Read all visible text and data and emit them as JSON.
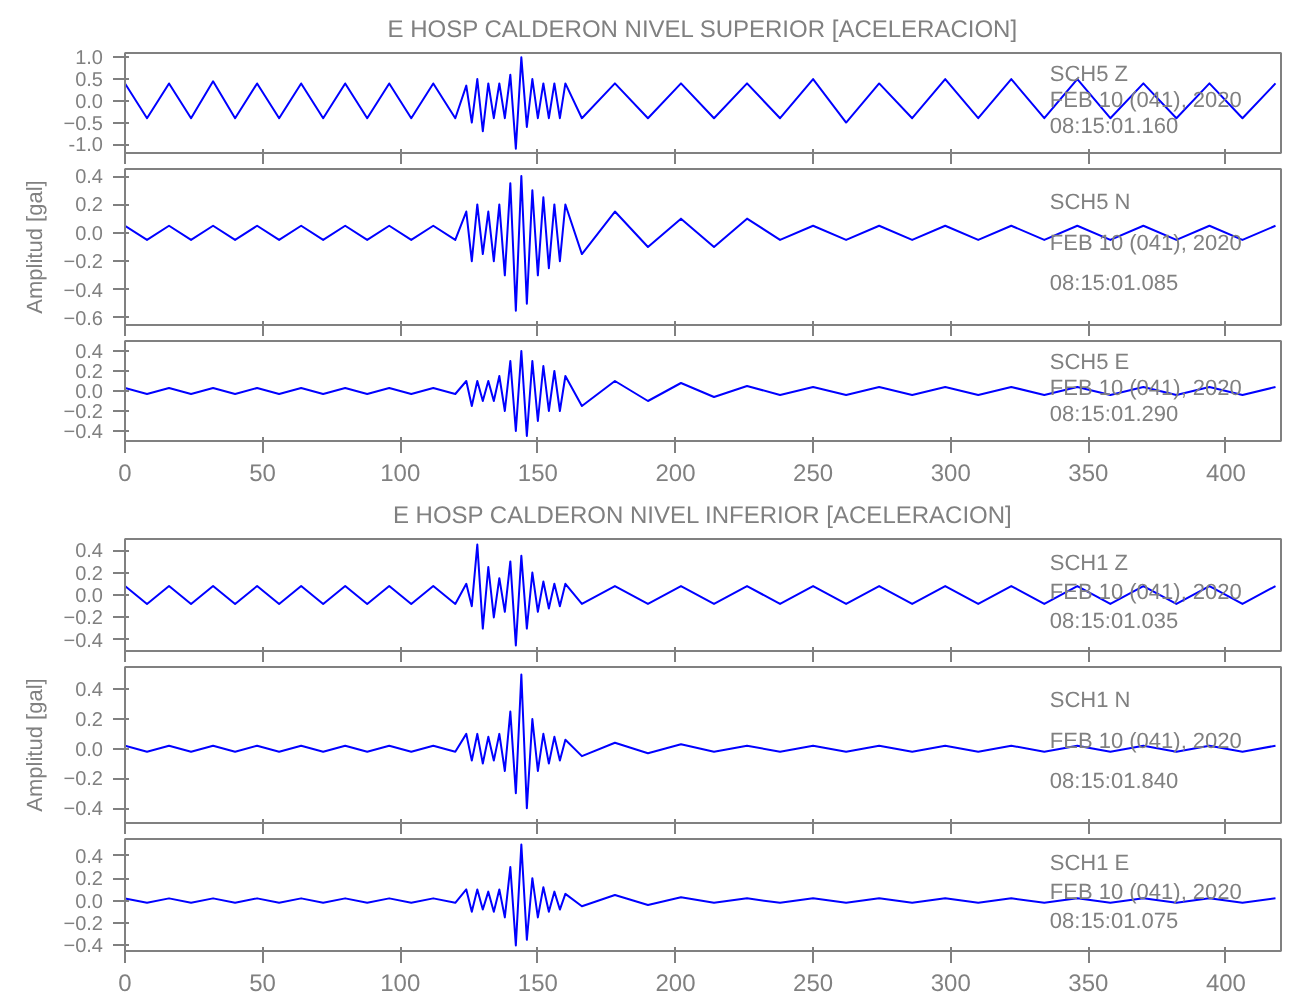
{
  "chart_data": [
    {
      "type": "line",
      "title": "E HOSP CALDERON NIVEL SUPERIOR [ACELERACION]",
      "tick_labels": "y",
      "xlim": [
        0,
        420
      ],
      "xticks": [
        0,
        50,
        100,
        150,
        200,
        250,
        300,
        350,
        400
      ],
      "ylim": [
        -1.2,
        1.1
      ],
      "yticks": [
        {
          "value": 1.0,
          "label": "1.0"
        },
        0.5,
        {
          "value": 0.0,
          "label": "0.0"
        },
        -0.5,
        {
          "value": -1.0,
          "label": "-1.0"
        }
      ],
      "annotations": [
        "SCH5   Z",
        "FEB 10 (041), 2020",
        "08:15:01.160"
      ],
      "x": [
        0,
        8,
        16,
        24,
        32,
        40,
        48,
        56,
        64,
        72,
        80,
        88,
        96,
        104,
        112,
        120,
        124,
        126,
        128,
        130,
        132,
        134,
        136,
        138,
        140,
        142,
        144,
        146,
        148,
        150,
        152,
        154,
        156,
        158,
        160,
        166,
        178,
        190,
        202,
        214,
        226,
        238,
        250,
        262,
        274,
        286,
        298,
        310,
        322,
        334,
        346,
        358,
        370,
        382,
        394,
        406,
        418
      ],
      "series": [
        {
          "color": "#0000ff",
          "values": [
            0.4,
            -0.4,
            0.4,
            -0.4,
            0.45,
            -0.4,
            0.4,
            -0.4,
            0.4,
            -0.4,
            0.4,
            -0.4,
            0.4,
            -0.4,
            0.4,
            -0.4,
            0.35,
            -0.5,
            0.5,
            -0.7,
            0.4,
            -0.4,
            0.4,
            -0.4,
            0.6,
            -1.1,
            1.0,
            -0.6,
            0.5,
            -0.4,
            0.4,
            -0.4,
            0.4,
            -0.4,
            0.4,
            -0.4,
            0.4,
            -0.4,
            0.4,
            -0.4,
            0.4,
            -0.4,
            0.5,
            -0.5,
            0.4,
            -0.4,
            0.5,
            -0.4,
            0.5,
            -0.4,
            0.5,
            -0.4,
            0.4,
            -0.4,
            0.4,
            -0.4,
            0.4
          ]
        }
      ]
    },
    {
      "type": "line",
      "ylabel": "Amplitud [gal]",
      "tick_labels": "y",
      "xlim": [
        0,
        420
      ],
      "xticks": [
        0,
        50,
        100,
        150,
        200,
        250,
        300,
        350,
        400
      ],
      "ylim": [
        -0.65,
        0.45
      ],
      "yticks": [
        0.4,
        0.2,
        {
          "value": 0.0,
          "label": "0.0"
        },
        -0.2,
        -0.4,
        -0.6
      ],
      "annotations": [
        "SCH5   N",
        "FEB 10 (041), 2020",
        "08:15:01.085"
      ],
      "x": [
        0,
        8,
        16,
        24,
        32,
        40,
        48,
        56,
        64,
        72,
        80,
        88,
        96,
        104,
        112,
        120,
        124,
        126,
        128,
        130,
        132,
        134,
        136,
        138,
        140,
        142,
        144,
        146,
        148,
        150,
        152,
        154,
        156,
        158,
        160,
        166,
        178,
        190,
        202,
        214,
        226,
        238,
        250,
        262,
        274,
        286,
        298,
        310,
        322,
        334,
        346,
        358,
        370,
        382,
        394,
        406,
        418
      ],
      "series": [
        {
          "color": "#0000ff",
          "values": [
            0.05,
            -0.05,
            0.05,
            -0.05,
            0.05,
            -0.05,
            0.05,
            -0.05,
            0.05,
            -0.05,
            0.05,
            -0.05,
            0.05,
            -0.05,
            0.05,
            -0.05,
            0.15,
            -0.2,
            0.2,
            -0.15,
            0.15,
            -0.2,
            0.2,
            -0.3,
            0.35,
            -0.55,
            0.4,
            -0.5,
            0.3,
            -0.3,
            0.25,
            -0.25,
            0.2,
            -0.2,
            0.2,
            -0.15,
            0.15,
            -0.1,
            0.1,
            -0.1,
            0.1,
            -0.05,
            0.05,
            -0.05,
            0.05,
            -0.05,
            0.05,
            -0.05,
            0.05,
            -0.05,
            0.05,
            -0.05,
            0.05,
            -0.05,
            0.05,
            -0.05,
            0.05
          ]
        }
      ]
    },
    {
      "type": "line",
      "xlim": [
        0,
        420
      ],
      "xticks": [
        0,
        50,
        100,
        150,
        200,
        250,
        300,
        350,
        400
      ],
      "ylim": [
        -0.5,
        0.5
      ],
      "yticks": [
        0.4,
        0.2,
        {
          "value": 0.0,
          "label": "0.0"
        },
        -0.2,
        -0.4
      ],
      "annotations": [
        "SCH5   E",
        "FEB 10 (041), 2020",
        "08:15:01.290"
      ],
      "x": [
        0,
        8,
        16,
        24,
        32,
        40,
        48,
        56,
        64,
        72,
        80,
        88,
        96,
        104,
        112,
        120,
        124,
        126,
        128,
        130,
        132,
        134,
        136,
        138,
        140,
        142,
        144,
        146,
        148,
        150,
        152,
        154,
        156,
        158,
        160,
        166,
        178,
        190,
        202,
        214,
        226,
        238,
        250,
        262,
        274,
        286,
        298,
        310,
        322,
        334,
        346,
        358,
        370,
        382,
        394,
        406,
        418
      ],
      "series": [
        {
          "color": "#0000ff",
          "values": [
            0.03,
            -0.03,
            0.03,
            -0.03,
            0.03,
            -0.03,
            0.03,
            -0.03,
            0.03,
            -0.03,
            0.03,
            -0.03,
            0.03,
            -0.03,
            0.03,
            -0.03,
            0.1,
            -0.15,
            0.1,
            -0.1,
            0.1,
            -0.1,
            0.15,
            -0.2,
            0.3,
            -0.4,
            0.4,
            -0.45,
            0.3,
            -0.3,
            0.25,
            -0.2,
            0.2,
            -0.2,
            0.15,
            -0.15,
            0.1,
            -0.1,
            0.08,
            -0.06,
            0.05,
            -0.04,
            0.04,
            -0.04,
            0.04,
            -0.04,
            0.04,
            -0.04,
            0.04,
            -0.04,
            0.04,
            -0.04,
            0.04,
            -0.04,
            0.04,
            -0.04,
            0.04
          ]
        }
      ]
    },
    {
      "type": "line",
      "title": "E HOSP CALDERON NIVEL INFERIOR [ACELERACION]",
      "tick_labels": "y",
      "xlim": [
        0,
        420
      ],
      "xticks": [
        0,
        50,
        100,
        150,
        200,
        250,
        300,
        350,
        400
      ],
      "ylim": [
        -0.5,
        0.5
      ],
      "yticks": [
        0.4,
        0.2,
        {
          "value": 0.0,
          "label": "0.0"
        },
        -0.2,
        -0.4
      ],
      "annotations": [
        "SCH1   Z",
        "FEB 10 (041), 2020",
        "08:15:01.035"
      ],
      "x": [
        0,
        8,
        16,
        24,
        32,
        40,
        48,
        56,
        64,
        72,
        80,
        88,
        96,
        104,
        112,
        120,
        124,
        126,
        128,
        130,
        132,
        134,
        136,
        138,
        140,
        142,
        144,
        146,
        148,
        150,
        152,
        154,
        156,
        158,
        160,
        166,
        178,
        190,
        202,
        214,
        226,
        238,
        250,
        262,
        274,
        286,
        298,
        310,
        322,
        334,
        346,
        358,
        370,
        382,
        394,
        406,
        418
      ],
      "series": [
        {
          "color": "#0000ff",
          "values": [
            0.08,
            -0.08,
            0.08,
            -0.08,
            0.08,
            -0.08,
            0.08,
            -0.08,
            0.08,
            -0.08,
            0.08,
            -0.08,
            0.08,
            -0.08,
            0.08,
            -0.08,
            0.1,
            -0.1,
            0.45,
            -0.3,
            0.25,
            -0.2,
            0.15,
            -0.15,
            0.3,
            -0.45,
            0.35,
            -0.3,
            0.2,
            -0.15,
            0.12,
            -0.12,
            0.1,
            -0.1,
            0.1,
            -0.08,
            0.08,
            -0.08,
            0.08,
            -0.08,
            0.08,
            -0.08,
            0.08,
            -0.08,
            0.08,
            -0.08,
            0.08,
            -0.08,
            0.08,
            -0.08,
            0.08,
            -0.08,
            0.08,
            -0.08,
            0.08,
            -0.08,
            0.08
          ]
        }
      ]
    },
    {
      "type": "line",
      "ylabel": "Amplitud [gal]",
      "tick_labels": "y",
      "xlim": [
        0,
        420
      ],
      "xticks": [
        0,
        50,
        100,
        150,
        200,
        250,
        300,
        350,
        400
      ],
      "ylim": [
        -0.5,
        0.55
      ],
      "yticks": [
        0.4,
        0.2,
        {
          "value": 0.0,
          "label": "0.0"
        },
        -0.2,
        -0.4
      ],
      "annotations": [
        "SCH1   N",
        "FEB 10 (041), 2020",
        "08:15:01.840"
      ],
      "x": [
        0,
        8,
        16,
        24,
        32,
        40,
        48,
        56,
        64,
        72,
        80,
        88,
        96,
        104,
        112,
        120,
        124,
        126,
        128,
        130,
        132,
        134,
        136,
        138,
        140,
        142,
        144,
        146,
        148,
        150,
        152,
        154,
        156,
        158,
        160,
        166,
        178,
        190,
        202,
        214,
        226,
        238,
        250,
        262,
        274,
        286,
        298,
        310,
        322,
        334,
        346,
        358,
        370,
        382,
        394,
        406,
        418
      ],
      "series": [
        {
          "color": "#0000ff",
          "values": [
            0.02,
            -0.02,
            0.02,
            -0.02,
            0.02,
            -0.02,
            0.02,
            -0.02,
            0.02,
            -0.02,
            0.02,
            -0.02,
            0.02,
            -0.02,
            0.02,
            -0.02,
            0.1,
            -0.08,
            0.1,
            -0.1,
            0.08,
            -0.08,
            0.1,
            -0.15,
            0.25,
            -0.3,
            0.5,
            -0.4,
            0.2,
            -0.15,
            0.1,
            -0.1,
            0.08,
            -0.08,
            0.06,
            -0.05,
            0.04,
            -0.03,
            0.03,
            -0.02,
            0.02,
            -0.02,
            0.02,
            -0.02,
            0.02,
            -0.02,
            0.02,
            -0.02,
            0.02,
            -0.02,
            0.02,
            -0.02,
            0.02,
            -0.02,
            0.02,
            -0.02,
            0.02
          ]
        }
      ]
    },
    {
      "type": "line",
      "xlim": [
        0,
        420
      ],
      "xticks": [
        0,
        50,
        100,
        150,
        200,
        250,
        300,
        350,
        400
      ],
      "ylim": [
        -0.45,
        0.55
      ],
      "yticks": [
        0.4,
        0.2,
        {
          "value": 0.0,
          "label": "0.0"
        },
        -0.2,
        -0.4
      ],
      "annotations": [
        "SCH1   E",
        "FEB 10 (041), 2020",
        "08:15:01.075"
      ],
      "x": [
        0,
        8,
        16,
        24,
        32,
        40,
        48,
        56,
        64,
        72,
        80,
        88,
        96,
        104,
        112,
        120,
        124,
        126,
        128,
        130,
        132,
        134,
        136,
        138,
        140,
        142,
        144,
        146,
        148,
        150,
        152,
        154,
        156,
        158,
        160,
        166,
        178,
        190,
        202,
        214,
        226,
        238,
        250,
        262,
        274,
        286,
        298,
        310,
        322,
        334,
        346,
        358,
        370,
        382,
        394,
        406,
        418
      ],
      "series": [
        {
          "color": "#0000ff",
          "values": [
            0.02,
            -0.02,
            0.02,
            -0.02,
            0.02,
            -0.02,
            0.02,
            -0.02,
            0.02,
            -0.02,
            0.02,
            -0.02,
            0.02,
            -0.02,
            0.02,
            -0.02,
            0.1,
            -0.1,
            0.1,
            -0.08,
            0.08,
            -0.1,
            0.1,
            -0.15,
            0.3,
            -0.4,
            0.5,
            -0.35,
            0.2,
            -0.15,
            0.12,
            -0.1,
            0.08,
            -0.08,
            0.06,
            -0.05,
            0.05,
            -0.04,
            0.03,
            -0.02,
            0.02,
            -0.02,
            0.02,
            -0.02,
            0.02,
            -0.02,
            0.02,
            -0.02,
            0.02,
            -0.02,
            0.02,
            -0.02,
            0.02,
            -0.02,
            0.02,
            -0.02,
            0.02
          ]
        }
      ]
    }
  ]
}
